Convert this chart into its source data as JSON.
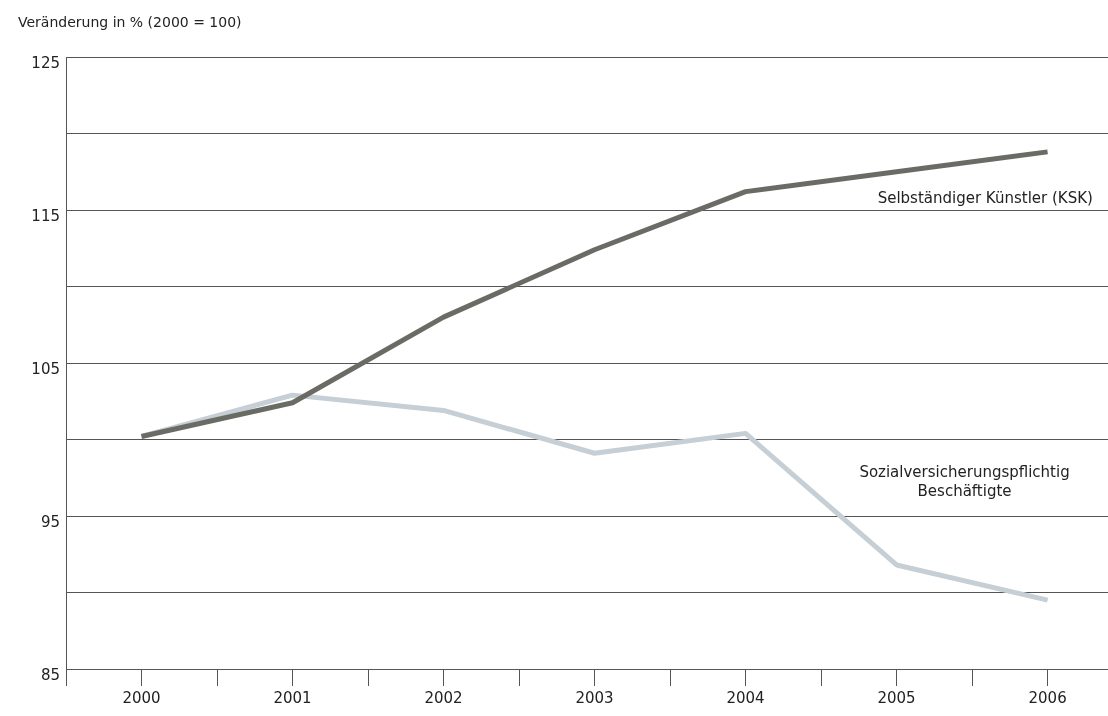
{
  "chart_data": {
    "type": "line",
    "ylabel": "Veränderung in % (2000 = 100)",
    "x": [
      2000,
      2001,
      2002,
      2003,
      2004,
      2005,
      2006
    ],
    "xlim": [
      1999.5,
      2006.4
    ],
    "xticks": [
      {
        "value": 1999.5,
        "label": null
      },
      2000,
      {
        "value": 2000.5,
        "label": null
      },
      2001,
      {
        "value": 2001.5,
        "label": null
      },
      2002,
      {
        "value": 2002.5,
        "label": null
      },
      2003,
      {
        "value": 2003.5,
        "label": null
      },
      2004,
      {
        "value": 2004.5,
        "label": null
      },
      2005,
      {
        "value": 2005.5,
        "label": null
      },
      2006
    ],
    "ylim": [
      85,
      125
    ],
    "yticks": [
      85,
      {
        "value": 90,
        "label": null
      },
      95,
      {
        "value": 100,
        "label": null
      },
      105,
      {
        "value": 110,
        "label": null
      },
      115,
      {
        "value": 120,
        "label": null
      },
      125
    ],
    "grid": "y",
    "legend": false,
    "marker": "none",
    "line_style": "solid",
    "series": [
      {
        "name": "Selbständiger Künstler (KSK)",
        "color": "#6b6b66",
        "values": [
          100.2,
          102.4,
          108.0,
          112.4,
          116.2,
          117.5,
          118.8
        ]
      },
      {
        "name": "Sozialversicherungspflichtig Beschäftigte",
        "color": "#c5cfd5",
        "values": [
          100.2,
          102.9,
          101.9,
          99.1,
          100.4,
          91.8,
          89.5
        ]
      }
    ]
  }
}
